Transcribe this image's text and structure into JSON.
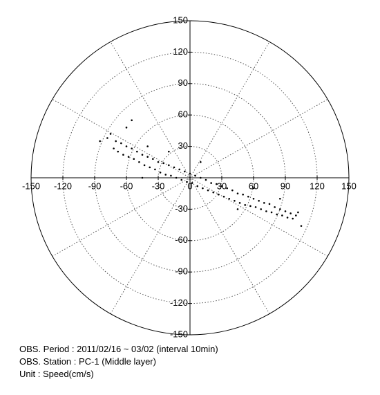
{
  "chart_data": {
    "type": "scatter",
    "xlim": [
      -150,
      150
    ],
    "ylim": [
      -150,
      150
    ],
    "xticks": [
      -150,
      -120,
      -90,
      -60,
      -30,
      0,
      30,
      60,
      90,
      120,
      150
    ],
    "yticks": [
      -150,
      -120,
      -90,
      -60,
      -30,
      30,
      60,
      90,
      120,
      150
    ],
    "grid": true,
    "series": [
      {
        "color": "#000000",
        "x": [
          -78,
          -75,
          -72,
          -70,
          -68,
          -65,
          -63,
          -60,
          -58,
          -55,
          -53,
          -50,
          -48,
          -45,
          -43,
          -40,
          -38,
          -35,
          -33,
          -30,
          -28,
          -25,
          -23,
          -20,
          -18,
          -15,
          -13,
          -10,
          -8,
          -5,
          -3,
          0,
          2,
          5,
          7,
          10,
          12,
          15,
          17,
          20,
          22,
          25,
          27,
          30,
          32,
          35,
          37,
          40,
          42,
          45,
          47,
          50,
          52,
          55,
          57,
          60,
          62,
          65,
          67,
          70,
          72,
          75,
          77,
          80,
          82,
          85,
          87,
          90,
          92,
          95,
          97,
          100,
          102,
          -85,
          -60,
          -55,
          -40,
          -20,
          10,
          45,
          60,
          85,
          105,
          -45
        ],
        "y": [
          38,
          42,
          28,
          35,
          25,
          33,
          22,
          30,
          20,
          28,
          18,
          25,
          15,
          22,
          12,
          20,
          10,
          18,
          8,
          15,
          5,
          14,
          3,
          12,
          2,
          10,
          0,
          8,
          -2,
          6,
          -4,
          4,
          -5,
          2,
          -8,
          0,
          -10,
          -2,
          -12,
          -5,
          -14,
          -6,
          -16,
          -8,
          -18,
          -10,
          -20,
          -12,
          -22,
          -15,
          -24,
          -16,
          -26,
          -18,
          -27,
          -20,
          -28,
          -22,
          -30,
          -24,
          -32,
          -25,
          -33,
          -28,
          -35,
          -30,
          -36,
          -32,
          -38,
          -34,
          -39,
          -36,
          -33,
          35,
          48,
          55,
          30,
          25,
          15,
          -30,
          -10,
          -20,
          -46,
          0
        ]
      }
    ],
    "annotations": [
      "OBS. Period : 2011/02/16 ~ 03/02 (interval 10min)",
      "OBS. Station : PC-1 (Middle layer)",
      "Unit : Speed(cm/s)"
    ]
  }
}
